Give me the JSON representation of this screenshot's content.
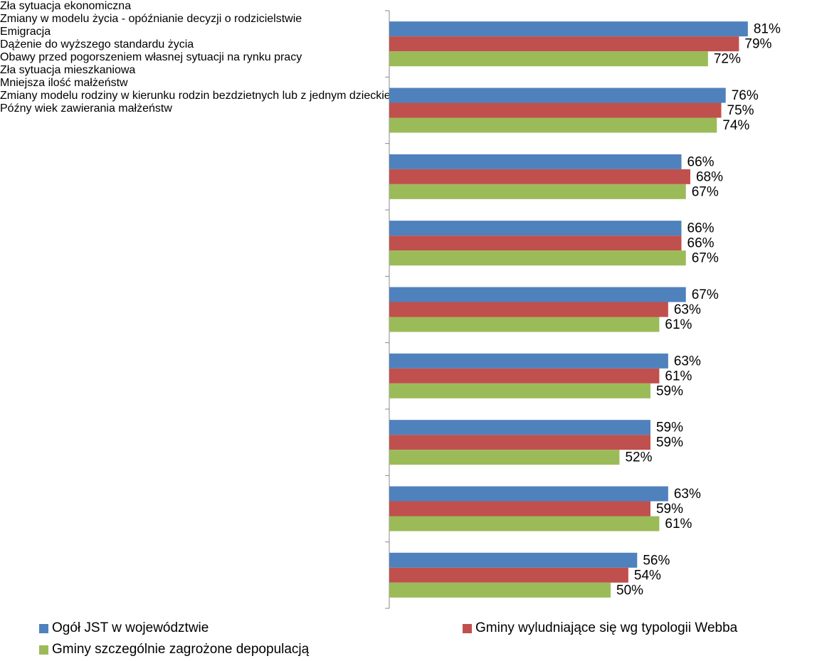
{
  "chart_data": {
    "type": "barh",
    "categories": [
      "Zła sytuacja ekonomiczna",
      "Zmiany w modelu życia - opóźnianie decyzji o rodzicielstwie",
      "Emigracja",
      "Dążenie do wyższego standardu życia",
      "Obawy przed pogorszeniem własnej sytuacji na rynku pracy",
      "Zła sytuacja mieszkaniowa",
      "Mniejsza ilość małżeństw",
      "Zmiany modelu rodziny w kierunku rodzin bezdzietnych lub z jednym dzieckiem",
      "Późny wiek zawierania małżeństw"
    ],
    "series": [
      {
        "name": "Ogół JST w województwie",
        "color": "#4f81bd",
        "values": [
          81,
          76,
          66,
          66,
          67,
          63,
          59,
          63,
          56
        ],
        "value_labels": [
          "81%",
          "76%",
          "66%",
          "66%",
          "67%",
          "63%",
          "59%",
          "63%",
          "56%"
        ]
      },
      {
        "name": "Gminy wyludniające się wg typologii Webba",
        "color": "#c0504d",
        "values": [
          79,
          75,
          68,
          66,
          63,
          61,
          59,
          59,
          54
        ],
        "value_labels": [
          "79%",
          "75%",
          "68%",
          "66%",
          "63%",
          "61%",
          "59%",
          "59%",
          "54%"
        ]
      },
      {
        "name": "Gminy szczególnie zagrożone depopulacją",
        "color": "#9bbb59",
        "values": [
          72,
          74,
          67,
          67,
          61,
          59,
          52,
          61,
          50
        ],
        "value_labels": [
          "72%",
          "74%",
          "67%",
          "67%",
          "61%",
          "59%",
          "52%",
          "61%",
          "50%"
        ]
      }
    ],
    "xlim": [
      0,
      100
    ],
    "legend": "bottom"
  }
}
